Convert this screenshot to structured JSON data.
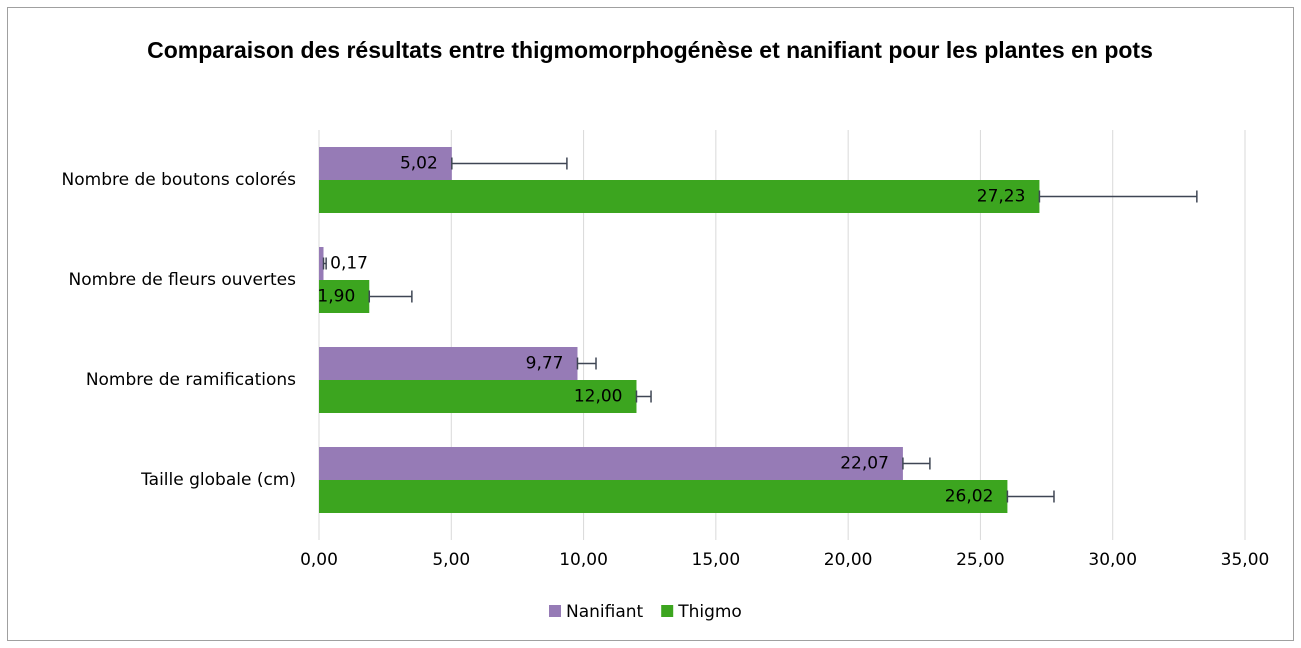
{
  "chart_data": {
    "type": "barh",
    "title": "Comparaison des résultats entre thigmomorphogénèse et nanifiant pour les plantes en pots",
    "categories": [
      "Nombre de boutons colorés",
      "Nombre de fleurs ouvertes",
      "Nombre de ramifications",
      "Taille globale (cm)"
    ],
    "series": [
      {
        "name": "Nanifiant",
        "color": "#967bb6",
        "values": [
          5.02,
          0.17,
          9.77,
          22.07
        ],
        "value_labels": [
          "5,02",
          "0,17",
          "9,77",
          "22,07"
        ],
        "errors": [
          4.35,
          0.1,
          0.7,
          1.02
        ]
      },
      {
        "name": "Thigmo",
        "color": "#3ca51f",
        "values": [
          27.23,
          1.9,
          12.0,
          26.02
        ],
        "value_labels": [
          "27,23",
          "1,90",
          "12,00",
          "26,02"
        ],
        "errors": [
          5.95,
          1.61,
          0.55,
          1.76
        ]
      }
    ],
    "xlim": [
      0,
      35
    ],
    "xticks": [
      {
        "value": 0,
        "label": "0,00"
      },
      {
        "value": 5,
        "label": "5,00"
      },
      {
        "value": 10,
        "label": "10,00"
      },
      {
        "value": 15,
        "label": "15,00"
      },
      {
        "value": 20,
        "label": "20,00"
      },
      {
        "value": 25,
        "label": "25,00"
      },
      {
        "value": 30,
        "label": "30,00"
      },
      {
        "value": 35,
        "label": "35,00"
      }
    ],
    "grid": true,
    "legend": "bottom"
  }
}
